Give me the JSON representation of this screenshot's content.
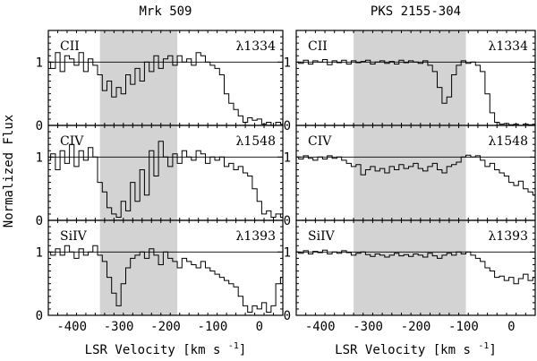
{
  "chart_data": {
    "type": "line",
    "ylabel": "Normalized Flux",
    "xlabel_main": "LSR Velocity [km s",
    "xlabel_sup": "-1",
    "xlabel_close": "]",
    "xlim": [
      -450,
      50
    ],
    "ylim": [
      0,
      1.5
    ],
    "xticks_major": [
      -400,
      -300,
      -200,
      -100,
      0
    ],
    "xtick_labels": [
      "-400",
      "-300",
      "-200",
      "-100",
      "0"
    ],
    "yticks_major": [
      0,
      1
    ],
    "ytick_labels": [
      "0",
      "1"
    ],
    "continuum": 1,
    "columns": [
      {
        "title": "Mrk 509",
        "shade_range": [
          -340,
          -175
        ],
        "panels": [
          {
            "ion": "CII",
            "line": "λ1334",
            "key": "mrk_cii"
          },
          {
            "ion": "CIV",
            "line": "λ1548",
            "key": "mrk_civ"
          },
          {
            "ion": "SiIV",
            "line": "λ1393",
            "key": "mrk_siiv"
          }
        ]
      },
      {
        "title": "PKS 2155-304",
        "shade_range": [
          -330,
          -95
        ],
        "panels": [
          {
            "ion": "CII",
            "line": "λ1334",
            "key": "pks_cii"
          },
          {
            "ion": "CIV",
            "line": "λ1548",
            "key": "pks_civ"
          },
          {
            "ion": "SiIV",
            "line": "λ1393",
            "key": "pks_siiv"
          }
        ]
      }
    ],
    "series": [
      {
        "key": "mrk_cii",
        "name": "Mrk 509 CII λ1334",
        "x": [
          -450,
          -440,
          -430,
          -420,
          -410,
          -400,
          -390,
          -380,
          -370,
          -360,
          -350,
          -340,
          -330,
          -320,
          -310,
          -300,
          -290,
          -280,
          -270,
          -260,
          -250,
          -240,
          -230,
          -220,
          -210,
          -200,
          -190,
          -180,
          -170,
          -160,
          -150,
          -140,
          -130,
          -120,
          -110,
          -100,
          -90,
          -80,
          -70,
          -60,
          -50,
          -40,
          -30,
          -20,
          -10,
          0,
          10,
          20,
          30,
          40,
          50
        ],
        "y": [
          1.0,
          0.9,
          1.15,
          0.85,
          1.1,
          1.05,
          0.95,
          1.15,
          0.85,
          1.05,
          0.95,
          0.8,
          0.55,
          0.7,
          0.45,
          0.6,
          0.5,
          0.8,
          0.65,
          0.9,
          0.7,
          1.0,
          0.85,
          1.1,
          0.9,
          1.05,
          1.1,
          0.95,
          1.1,
          1.0,
          1.05,
          0.95,
          1.15,
          1.1,
          1.0,
          0.95,
          0.9,
          0.8,
          0.5,
          0.35,
          0.25,
          0.15,
          0.05,
          0.12,
          0.08,
          0.1,
          0.02,
          0.05,
          0.0,
          0.05,
          0.02
        ]
      },
      {
        "key": "mrk_civ",
        "name": "Mrk 509 CIV λ1548",
        "x": [
          -450,
          -440,
          -430,
          -420,
          -410,
          -400,
          -390,
          -380,
          -370,
          -360,
          -350,
          -340,
          -330,
          -320,
          -310,
          -300,
          -290,
          -280,
          -270,
          -260,
          -250,
          -240,
          -230,
          -220,
          -210,
          -200,
          -190,
          -180,
          -170,
          -160,
          -150,
          -140,
          -130,
          -120,
          -110,
          -100,
          -90,
          -80,
          -70,
          -60,
          -50,
          -40,
          -30,
          -20,
          -10,
          0,
          10,
          20,
          30,
          40,
          50
        ],
        "y": [
          0.95,
          1.05,
          0.8,
          1.1,
          0.9,
          1.2,
          0.85,
          1.1,
          0.95,
          1.15,
          1.0,
          0.6,
          0.45,
          0.2,
          0.1,
          0.05,
          0.3,
          0.15,
          0.6,
          0.3,
          0.8,
          0.4,
          1.1,
          0.7,
          1.25,
          1.0,
          0.85,
          1.05,
          0.9,
          1.1,
          1.0,
          0.95,
          1.1,
          1.05,
          0.9,
          1.0,
          0.95,
          1.0,
          0.85,
          0.9,
          0.8,
          0.85,
          0.75,
          0.7,
          0.5,
          0.3,
          0.1,
          0.15,
          0.05,
          0.1,
          0.05
        ]
      },
      {
        "key": "mrk_siiv",
        "name": "Mrk 509 SiIV λ1393",
        "x": [
          -450,
          -440,
          -430,
          -420,
          -410,
          -400,
          -390,
          -380,
          -370,
          -360,
          -350,
          -340,
          -330,
          -320,
          -310,
          -300,
          -290,
          -280,
          -270,
          -260,
          -250,
          -240,
          -230,
          -220,
          -210,
          -200,
          -190,
          -180,
          -170,
          -160,
          -150,
          -140,
          -130,
          -120,
          -110,
          -100,
          -90,
          -80,
          -70,
          -60,
          -50,
          -40,
          -30,
          -20,
          -10,
          0,
          10,
          20,
          30,
          40,
          50
        ],
        "y": [
          1.0,
          0.95,
          1.05,
          0.95,
          1.1,
          1.0,
          0.9,
          1.05,
          0.95,
          1.0,
          1.1,
          0.95,
          0.85,
          0.6,
          0.35,
          0.15,
          0.5,
          0.75,
          0.9,
          0.95,
          1.0,
          0.9,
          1.05,
          0.95,
          0.8,
          1.0,
          0.9,
          0.85,
          0.75,
          0.9,
          0.85,
          0.8,
          0.75,
          0.85,
          0.75,
          0.7,
          0.65,
          0.6,
          0.55,
          0.5,
          0.45,
          0.3,
          0.15,
          0.05,
          0.15,
          0.1,
          0.2,
          0.05,
          0.15,
          0.5,
          0.6
        ]
      },
      {
        "key": "pks_cii",
        "name": "PKS 2155-304 CII λ1334",
        "x": [
          -450,
          -440,
          -430,
          -420,
          -410,
          -400,
          -390,
          -380,
          -370,
          -360,
          -350,
          -340,
          -330,
          -320,
          -310,
          -300,
          -290,
          -280,
          -270,
          -260,
          -250,
          -240,
          -230,
          -220,
          -210,
          -200,
          -190,
          -180,
          -170,
          -160,
          -150,
          -140,
          -130,
          -120,
          -110,
          -100,
          -90,
          -80,
          -70,
          -60,
          -50,
          -40,
          -30,
          -20,
          -10,
          0,
          10,
          20,
          30,
          40,
          50
        ],
        "y": [
          1.0,
          0.98,
          1.03,
          0.97,
          1.02,
          1.0,
          1.04,
          0.96,
          1.02,
          0.99,
          1.03,
          0.97,
          1.02,
          0.99,
          1.01,
          1.03,
          0.97,
          1.0,
          1.02,
          0.98,
          1.01,
          0.97,
          1.03,
          0.99,
          1.02,
          1.0,
          0.98,
          1.02,
          0.95,
          0.85,
          0.6,
          0.35,
          0.45,
          0.8,
          0.95,
          1.02,
          0.98,
          1.0,
          0.95,
          0.85,
          0.5,
          0.2,
          0.05,
          0.02,
          0.03,
          0.01,
          0.02,
          0.0,
          0.02,
          0.01,
          0.02
        ]
      },
      {
        "key": "pks_civ",
        "name": "PKS 2155-304 CIV λ1548",
        "x": [
          -450,
          -440,
          -430,
          -420,
          -410,
          -400,
          -390,
          -380,
          -370,
          -360,
          -350,
          -340,
          -330,
          -320,
          -310,
          -300,
          -290,
          -280,
          -270,
          -260,
          -250,
          -240,
          -230,
          -220,
          -210,
          -200,
          -190,
          -180,
          -170,
          -160,
          -150,
          -140,
          -130,
          -120,
          -110,
          -100,
          -90,
          -80,
          -70,
          -60,
          -50,
          -40,
          -30,
          -20,
          -10,
          0,
          10,
          20,
          30,
          40,
          50
        ],
        "y": [
          1.0,
          0.97,
          1.02,
          0.98,
          0.95,
          1.0,
          0.97,
          1.02,
          0.98,
          1.0,
          0.95,
          0.9,
          0.85,
          0.88,
          0.72,
          0.8,
          0.85,
          0.78,
          0.82,
          0.75,
          0.85,
          0.8,
          0.88,
          0.82,
          0.85,
          0.9,
          0.82,
          0.78,
          0.85,
          0.9,
          0.8,
          0.75,
          0.85,
          0.88,
          0.92,
          1.0,
          1.03,
          1.0,
          1.02,
          0.95,
          0.85,
          0.9,
          0.8,
          0.75,
          0.7,
          0.6,
          0.55,
          0.62,
          0.5,
          0.45,
          0.4
        ]
      },
      {
        "key": "pks_siiv",
        "name": "PKS 2155-304 SiIV λ1393",
        "x": [
          -450,
          -440,
          -430,
          -420,
          -410,
          -400,
          -390,
          -380,
          -370,
          -360,
          -350,
          -340,
          -330,
          -320,
          -310,
          -300,
          -290,
          -280,
          -270,
          -260,
          -250,
          -240,
          -230,
          -220,
          -210,
          -200,
          -190,
          -180,
          -170,
          -160,
          -150,
          -140,
          -130,
          -120,
          -110,
          -100,
          -90,
          -80,
          -70,
          -60,
          -50,
          -40,
          -30,
          -20,
          -10,
          0,
          10,
          20,
          30,
          40,
          50
        ],
        "y": [
          1.0,
          0.98,
          1.02,
          0.97,
          1.01,
          0.99,
          1.03,
          0.97,
          1.0,
          0.98,
          1.02,
          0.99,
          0.95,
          0.98,
          1.0,
          0.96,
          0.93,
          0.97,
          0.95,
          0.92,
          0.95,
          0.98,
          0.94,
          0.96,
          0.93,
          0.97,
          0.95,
          0.92,
          0.98,
          0.94,
          0.9,
          0.95,
          0.98,
          0.95,
          1.0,
          0.97,
          1.0,
          0.95,
          0.9,
          0.85,
          0.75,
          0.7,
          0.6,
          0.62,
          0.55,
          0.6,
          0.5,
          0.58,
          0.65,
          0.55,
          0.6
        ]
      }
    ],
    "colors": {
      "shade": "#d3d3d3",
      "line": "#000000",
      "background": "#ffffff"
    }
  }
}
